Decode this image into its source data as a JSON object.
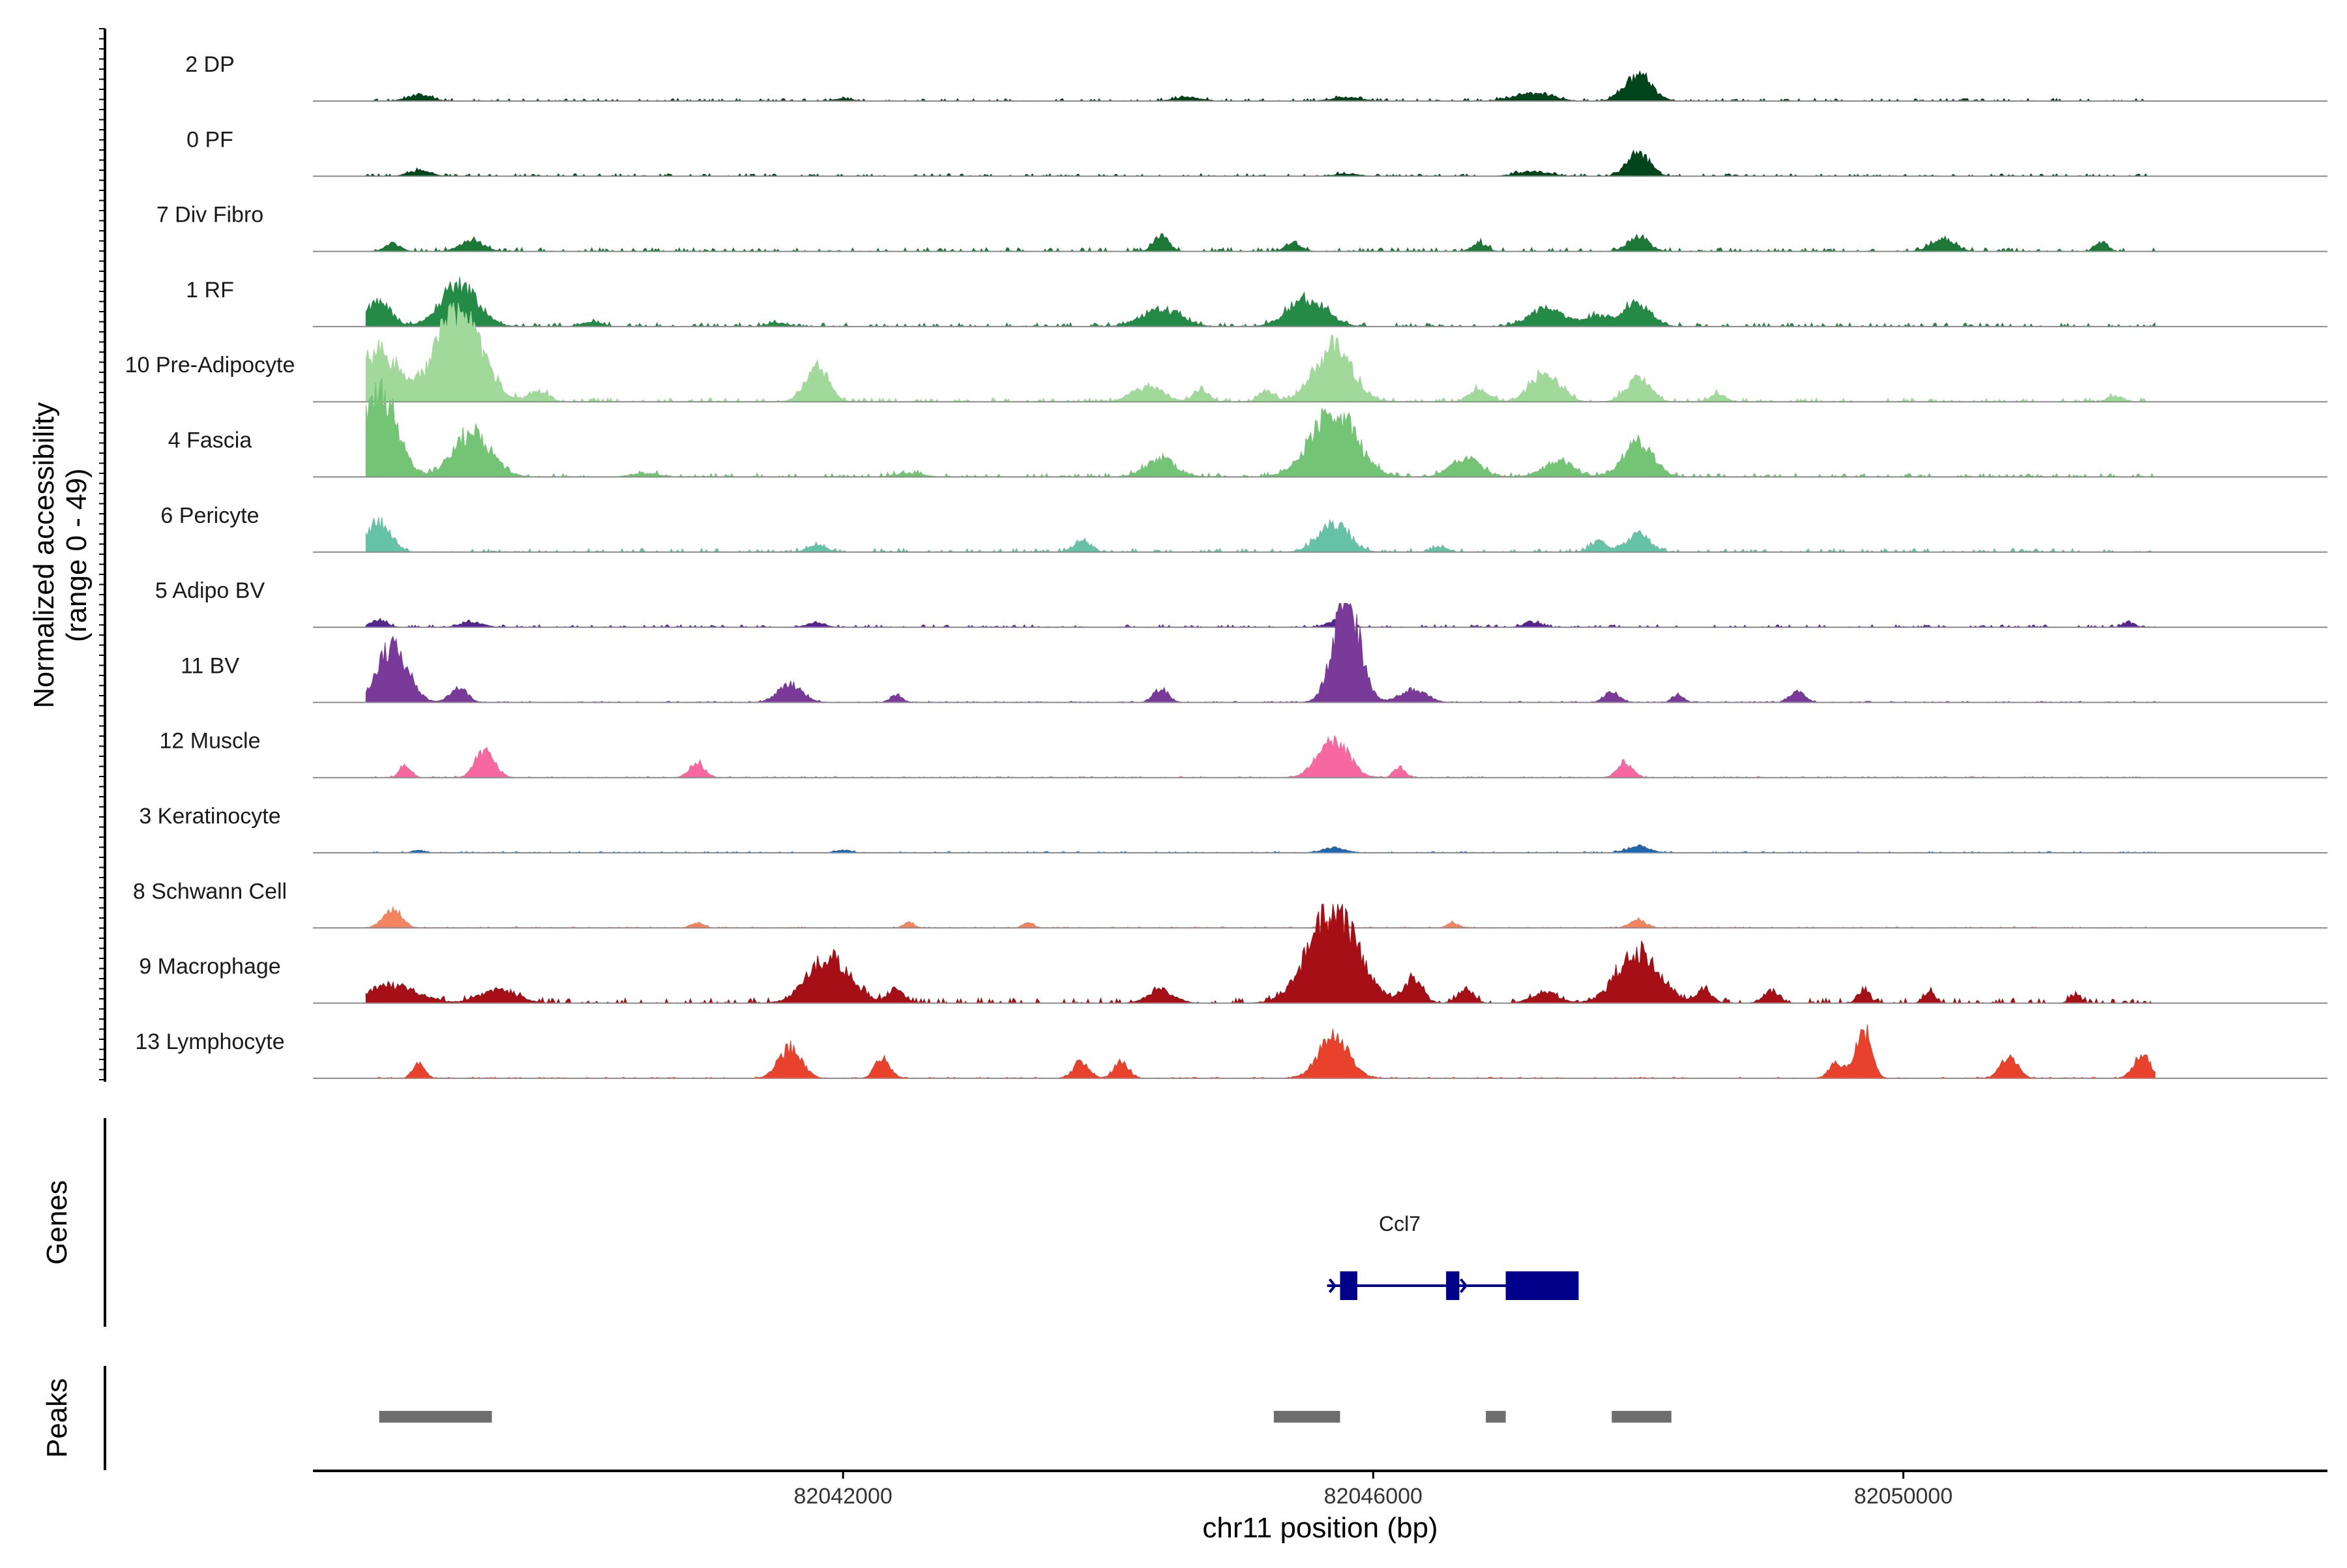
{
  "chart_data": {
    "type": "area",
    "title": "",
    "ylabel": "Normalized accessibility\n(range 0 - 49)",
    "ylabel_lines": [
      "Normalized accessibility",
      "(range 0 - 49)"
    ],
    "xlabel": "chr11 position (bp)",
    "ylim": [
      0,
      49
    ],
    "xlim": [
      82038000,
      82053200
    ],
    "x_ticks": [
      82042000,
      82046000,
      82050000
    ],
    "x_tick_labels": [
      "82042000",
      "82046000",
      "82050000"
    ],
    "tracks": [
      {
        "name": "2 DP",
        "color": "#00441b",
        "peaks": [
          [
            82038800,
            120,
            5
          ],
          [
            82042000,
            90,
            2
          ],
          [
            82044600,
            140,
            3
          ],
          [
            82047200,
            200,
            6
          ],
          [
            82048000,
            140,
            20
          ],
          [
            82045800,
            150,
            3
          ]
        ],
        "noise": 2
      },
      {
        "name": "0 PF",
        "color": "#00441b",
        "peaks": [
          [
            82038800,
            120,
            4
          ],
          [
            82047200,
            160,
            4
          ],
          [
            82048000,
            120,
            18
          ],
          [
            82045800,
            120,
            2
          ]
        ],
        "noise": 2
      },
      {
        "name": "7 Div Fibro",
        "color": "#1b7837",
        "peaks": [
          [
            82038600,
            80,
            6
          ],
          [
            82039200,
            120,
            9
          ],
          [
            82044400,
            80,
            12
          ],
          [
            82045400,
            80,
            7
          ],
          [
            82046800,
            80,
            6
          ],
          [
            82048000,
            110,
            12
          ],
          [
            82050300,
            120,
            10
          ],
          [
            82051500,
            60,
            7
          ]
        ],
        "noise": 3
      },
      {
        "name": "1 RF",
        "color": "#238b45",
        "peaks": [
          [
            82038500,
            120,
            20
          ],
          [
            82039100,
            200,
            32
          ],
          [
            82044400,
            200,
            14
          ],
          [
            82045500,
            200,
            22
          ],
          [
            82047300,
            180,
            14
          ],
          [
            82048000,
            140,
            18
          ],
          [
            82047700,
            160,
            8
          ],
          [
            82040100,
            100,
            4
          ],
          [
            82041500,
            100,
            3
          ]
        ],
        "noise": 3
      },
      {
        "name": "10 Pre-Adipocyte",
        "color": "#a1d99b",
        "peaks": [
          [
            82038500,
            200,
            40
          ],
          [
            82039100,
            240,
            72
          ],
          [
            82039700,
            100,
            8
          ],
          [
            82041800,
            120,
            28
          ],
          [
            82044300,
            160,
            12
          ],
          [
            82044700,
            80,
            10
          ],
          [
            82045200,
            80,
            8
          ],
          [
            82045700,
            200,
            42
          ],
          [
            82046800,
            100,
            10
          ],
          [
            82047300,
            150,
            24
          ],
          [
            82048000,
            120,
            20
          ],
          [
            82048600,
            80,
            6
          ],
          [
            82051600,
            80,
            5
          ]
        ],
        "noise": 3
      },
      {
        "name": "4 Fascia",
        "color": "#74c476",
        "peaks": [
          [
            82038500,
            180,
            70
          ],
          [
            82039200,
            200,
            34
          ],
          [
            82044400,
            160,
            14
          ],
          [
            82045700,
            240,
            52
          ],
          [
            82046700,
            160,
            14
          ],
          [
            82047400,
            160,
            12
          ],
          [
            82048000,
            160,
            26
          ],
          [
            82040500,
            140,
            3
          ],
          [
            82042500,
            140,
            3
          ]
        ],
        "noise": 3
      },
      {
        "name": "6 Pericyte",
        "color": "#66c2a5",
        "peaks": [
          [
            82038500,
            120,
            24
          ],
          [
            82041800,
            90,
            6
          ],
          [
            82043800,
            90,
            8
          ],
          [
            82045700,
            160,
            22
          ],
          [
            82047700,
            90,
            8
          ],
          [
            82048000,
            120,
            14
          ],
          [
            82046500,
            80,
            4
          ]
        ],
        "noise": 3
      },
      {
        "name": "5 Adipo BV",
        "color": "#54278f",
        "peaks": [
          [
            82038500,
            80,
            6
          ],
          [
            82039200,
            120,
            4
          ],
          [
            82041800,
            90,
            4
          ],
          [
            82045700,
            90,
            4
          ],
          [
            82047200,
            90,
            4
          ],
          [
            82051700,
            60,
            4
          ]
        ],
        "noise": 2
      },
      {
        "name": "11 BV",
        "color": "#7a3a9a",
        "peaks": [
          [
            82038600,
            160,
            44
          ],
          [
            82039100,
            90,
            12
          ],
          [
            82041600,
            130,
            14
          ],
          [
            82044400,
            80,
            10
          ],
          [
            82045800,
            140,
            80
          ],
          [
            82046300,
            140,
            10
          ],
          [
            82047800,
            80,
            8
          ],
          [
            82048300,
            60,
            6
          ],
          [
            82049200,
            80,
            8
          ],
          [
            82042400,
            60,
            6
          ]
        ],
        "noise": 1
      },
      {
        "name": "12 Muscle",
        "color": "#f768a1",
        "peaks": [
          [
            82038700,
            60,
            10
          ],
          [
            82039300,
            100,
            22
          ],
          [
            82040900,
            80,
            12
          ],
          [
            82045700,
            160,
            30
          ],
          [
            82046200,
            60,
            8
          ],
          [
            82047900,
            80,
            12
          ]
        ],
        "noise": 1
      },
      {
        "name": "3 Keratinocyte",
        "color": "#2166ac",
        "peaks": [
          [
            82045700,
            120,
            4
          ],
          [
            82048000,
            120,
            5
          ],
          [
            82038800,
            60,
            2
          ],
          [
            82042000,
            80,
            2
          ]
        ],
        "noise": 1
      },
      {
        "name": "8 Schwann Cell",
        "color": "#f4845f",
        "peaks": [
          [
            82038600,
            100,
            14
          ],
          [
            82045700,
            90,
            6
          ],
          [
            82048000,
            90,
            6
          ],
          [
            82040900,
            70,
            4
          ],
          [
            82042500,
            60,
            4
          ],
          [
            82043400,
            60,
            4
          ],
          [
            82046600,
            60,
            4
          ]
        ],
        "noise": 1
      },
      {
        "name": "9 Macrophage",
        "color": "#a50f15",
        "peaks": [
          [
            82038600,
            260,
            14
          ],
          [
            82039400,
            200,
            10
          ],
          [
            82041900,
            220,
            36
          ],
          [
            82042400,
            80,
            12
          ],
          [
            82044400,
            140,
            10
          ],
          [
            82045700,
            260,
            72
          ],
          [
            82046300,
            100,
            18
          ],
          [
            82046700,
            80,
            12
          ],
          [
            82048000,
            220,
            40
          ],
          [
            82048500,
            80,
            10
          ],
          [
            82049000,
            80,
            10
          ],
          [
            82049700,
            60,
            10
          ],
          [
            82050200,
            60,
            8
          ],
          [
            82051300,
            60,
            6
          ],
          [
            82047300,
            140,
            8
          ]
        ],
        "noise": 4
      },
      {
        "name": "13 Lymphocyte",
        "color": "#e8412c",
        "peaks": [
          [
            82038800,
            60,
            14
          ],
          [
            82041600,
            120,
            24
          ],
          [
            82042300,
            80,
            16
          ],
          [
            82043800,
            80,
            14
          ],
          [
            82044100,
            80,
            12
          ],
          [
            82045700,
            160,
            32
          ],
          [
            82049500,
            80,
            12
          ],
          [
            82049700,
            80,
            38
          ],
          [
            82050800,
            90,
            18
          ],
          [
            82051800,
            90,
            18
          ]
        ],
        "noise": 1
      }
    ],
    "genes": [
      {
        "name": "Ccl7",
        "start": 82045750,
        "end": 82047550,
        "strand": "+",
        "exons": [
          [
            82045750,
            82045880
          ],
          [
            82046550,
            82046650
          ],
          [
            82047000,
            82047550
          ]
        ]
      }
    ],
    "peaks": [
      {
        "start": 82038500,
        "end": 82039350
      },
      {
        "start": 82045250,
        "end": 82045750
      },
      {
        "start": 82046850,
        "end": 82047000
      },
      {
        "start": 82047800,
        "end": 82048250
      }
    ],
    "panel_labels": {
      "genes": "Genes",
      "peaks": "Peaks"
    }
  }
}
